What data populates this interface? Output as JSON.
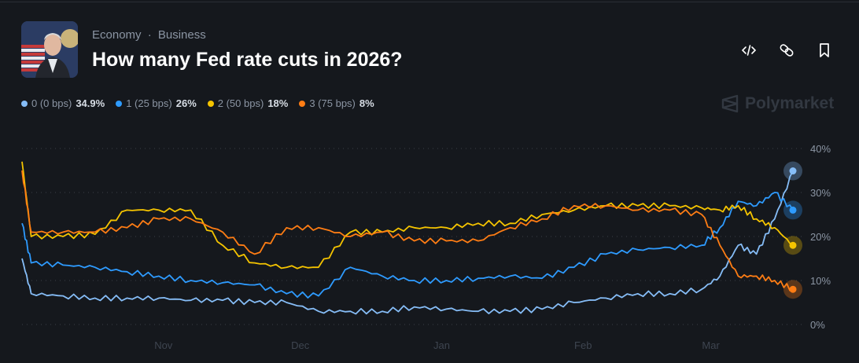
{
  "header": {
    "categories": [
      "Economy",
      "Business"
    ],
    "separator": "·",
    "title": "How many Fed rate cuts in 2026?",
    "actions": [
      "embed-code-icon",
      "link-icon",
      "bookmark-icon"
    ]
  },
  "brand": {
    "name": "Polymarket"
  },
  "legend": [
    {
      "label": "0 (0 bps)",
      "value": "34.9%",
      "color": "#86bdf7"
    },
    {
      "label": "1 (25 bps)",
      "value": "26%",
      "color": "#2e9bff"
    },
    {
      "label": "2 (50 bps)",
      "value": "18%",
      "color": "#f5c400"
    },
    {
      "label": "3 (75 bps)",
      "value": "8%",
      "color": "#ff7d14"
    }
  ],
  "chart_data": {
    "type": "line",
    "x": [
      "2025-10-01",
      "2025-10-03",
      "2025-10-10",
      "2025-10-17",
      "2025-10-24",
      "2025-10-31",
      "2025-11-07",
      "2025-11-14",
      "2025-11-21",
      "2025-11-28",
      "2025-12-05",
      "2025-12-12",
      "2025-12-19",
      "2025-12-26",
      "2026-01-02",
      "2026-01-09",
      "2026-01-16",
      "2026-01-23",
      "2026-01-30",
      "2026-02-06",
      "2026-02-13",
      "2026-02-20",
      "2026-02-27",
      "2026-03-03",
      "2026-03-07",
      "2026-03-11",
      "2026-03-15",
      "2026-03-19"
    ],
    "series": [
      {
        "name": "0 (0 bps)",
        "color": "#86bdf7",
        "values": [
          15,
          7,
          6.5,
          6,
          6,
          6,
          5.5,
          5.5,
          5,
          5,
          3,
          3,
          3,
          4,
          3.5,
          3,
          3,
          3.5,
          5,
          6,
          7,
          7,
          8,
          11,
          18,
          16,
          24,
          34.9
        ]
      },
      {
        "name": "1 (25 bps)",
        "color": "#2e9bff",
        "values": [
          23,
          14,
          13.5,
          13,
          12,
          11,
          10,
          9.5,
          9,
          7,
          6.5,
          13,
          11,
          10,
          10,
          10.5,
          11,
          10.5,
          13,
          16,
          17,
          17.5,
          18,
          22,
          28,
          27,
          30,
          26
        ]
      },
      {
        "name": "2 (50 bps)",
        "color": "#f5c400",
        "values": [
          37,
          20,
          20,
          20.5,
          26,
          26,
          26,
          18,
          14,
          13,
          13,
          21,
          21,
          22,
          22,
          23,
          23,
          25,
          26,
          27,
          27,
          27,
          26.5,
          26,
          27,
          24,
          22,
          18
        ]
      },
      {
        "name": "3 (75 bps)",
        "color": "#ff7d14",
        "values": [
          35,
          21,
          21,
          21,
          22,
          24,
          24,
          21,
          16,
          22,
          22,
          20,
          21,
          19,
          19,
          19,
          22,
          24,
          27,
          27,
          26,
          26,
          25,
          18,
          11,
          11,
          10,
          8
        ]
      }
    ],
    "x_ticks": [
      "Nov",
      "Dec",
      "Jan",
      "Feb",
      "Mar"
    ],
    "x_tick_dates": [
      "2025-11-01",
      "2025-12-01",
      "2026-01-01",
      "2026-02-01",
      "2026-03-01"
    ],
    "y_ticks": [
      "0%",
      "10%",
      "20%",
      "30%",
      "40%"
    ],
    "y_tick_values": [
      0,
      10,
      20,
      30,
      40
    ],
    "ylim": [
      0,
      40
    ],
    "xlim": [
      "2025-10-01",
      "2026-03-19"
    ],
    "grid": "horizontal dotted",
    "y_axis_side": "right"
  }
}
